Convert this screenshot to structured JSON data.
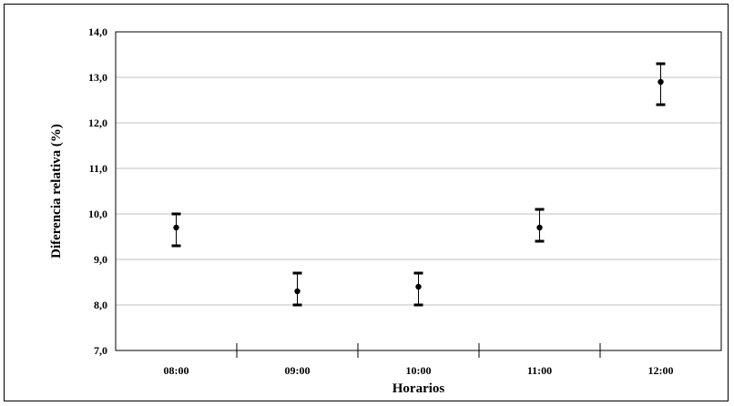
{
  "chart_data": {
    "type": "scatter",
    "title": "",
    "xlabel": "Horarios",
    "ylabel": "Diferencia relativa (%)",
    "categories": [
      "08:00",
      "09:00",
      "10:00",
      "11:00",
      "12:00"
    ],
    "y_ticks": [
      "7,0",
      "8,0",
      "9,0",
      "10,0",
      "11,0",
      "12,0",
      "13,0",
      "14,0"
    ],
    "ylim": [
      7.0,
      14.0
    ],
    "grid": true,
    "legend": "none",
    "series": [
      {
        "values": [
          9.7,
          8.3,
          8.4,
          9.7,
          12.9
        ],
        "error_low": [
          9.3,
          8.0,
          8.0,
          9.4,
          12.4
        ],
        "error_high": [
          10.0,
          8.7,
          8.7,
          10.1,
          13.3
        ]
      }
    ],
    "colors": {
      "marker": "#000000",
      "grid": "#c0c0c0",
      "axis": "#000000"
    }
  }
}
